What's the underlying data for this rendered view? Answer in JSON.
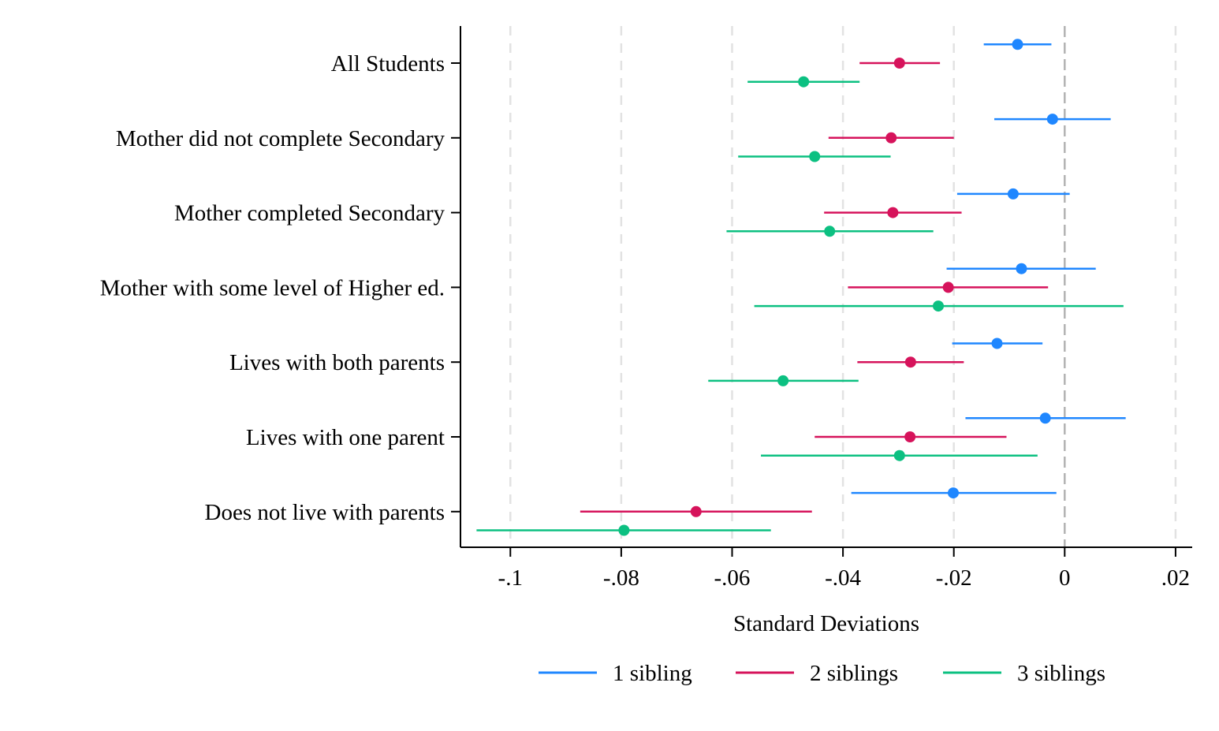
{
  "chart_data": {
    "type": "scatter",
    "subtype": "coefficient-plot-horizontal",
    "title": "",
    "xlabel": "Standard Deviations",
    "ylabel": "",
    "xlim": [
      -0.109,
      0.023
    ],
    "xticks": [
      -0.1,
      -0.08,
      -0.06,
      -0.04,
      -0.02,
      0,
      0.02
    ],
    "xtick_labels": [
      "-.1",
      "-.08",
      "-.06",
      "-.04",
      "-.02",
      "0",
      ".02"
    ],
    "grid": "vertical dashed at x ticks",
    "reference_line": 0,
    "legend_position": "bottom",
    "categories": [
      "All Students",
      "Mother did not complete Secondary",
      "Mother completed Secondary",
      "Mother with some level of Higher ed.",
      "Lives with both parents",
      "Lives with one parent",
      "Does not live with parents"
    ],
    "series": [
      {
        "name": "1 sibling",
        "color": "#1f87ff",
        "estimates": [
          -0.0085,
          -0.0022,
          -0.0093,
          -0.0078,
          -0.0122,
          -0.0035,
          -0.0201
        ],
        "ci_low": [
          -0.0146,
          -0.0127,
          -0.0194,
          -0.0213,
          -0.0203,
          -0.0179,
          -0.0385
        ],
        "ci_high": [
          -0.0024,
          0.0083,
          0.0009,
          0.0056,
          -0.004,
          0.011,
          -0.0015
        ]
      },
      {
        "name": "2 siblings",
        "color": "#d6135b",
        "estimates": [
          -0.0298,
          -0.0313,
          -0.031,
          -0.021,
          -0.0278,
          -0.0279,
          -0.0665
        ],
        "ci_low": [
          -0.037,
          -0.0426,
          -0.0434,
          -0.0391,
          -0.0374,
          -0.0451,
          -0.0874
        ],
        "ci_high": [
          -0.0225,
          -0.02,
          -0.0186,
          -0.003,
          -0.0182,
          -0.0105,
          -0.0456
        ]
      },
      {
        "name": "3 siblings",
        "color": "#0cc081",
        "estimates": [
          -0.0471,
          -0.0451,
          -0.0424,
          -0.0228,
          -0.0508,
          -0.0298,
          -0.0795
        ],
        "ci_low": [
          -0.0572,
          -0.0589,
          -0.061,
          -0.056,
          -0.0643,
          -0.0548,
          -0.1061
        ],
        "ci_high": [
          -0.037,
          -0.0314,
          -0.0237,
          0.0106,
          -0.0372,
          -0.0049,
          -0.053
        ]
      }
    ]
  }
}
